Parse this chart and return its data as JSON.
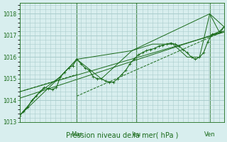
{
  "title": "",
  "xlabel": "Pression niveau de la mer( hPa )",
  "ylabel": "",
  "ylim": [
    1013,
    1018.5
  ],
  "yticks": [
    1013,
    1014,
    1015,
    1016,
    1017,
    1018
  ],
  "bg_color": "#d8eeee",
  "grid_color": "#aacccc",
  "line_color": "#1a6b1a",
  "day_labels": [
    "Mar",
    "Jeu",
    "Ven"
  ],
  "day_positions": [
    0.28,
    0.57,
    0.93
  ],
  "series": [
    {
      "x": [
        0.0,
        0.02,
        0.04,
        0.06,
        0.08,
        0.1,
        0.12,
        0.14,
        0.16,
        0.18,
        0.2,
        0.22,
        0.24,
        0.26,
        0.28,
        0.3,
        0.32,
        0.34,
        0.36,
        0.38,
        0.4,
        0.42,
        0.44,
        0.46,
        0.48,
        0.5,
        0.52,
        0.54,
        0.56,
        0.58,
        0.6,
        0.62,
        0.64,
        0.66,
        0.68,
        0.7,
        0.72,
        0.74,
        0.76,
        0.78,
        0.8,
        0.82,
        0.84,
        0.86,
        0.88,
        0.9,
        0.92,
        0.94,
        0.96,
        0.98,
        1.0
      ],
      "y": [
        1013.3,
        1013.5,
        1013.7,
        1014.0,
        1014.2,
        1014.4,
        1014.6,
        1014.55,
        1014.5,
        1014.6,
        1015.1,
        1015.3,
        1015.5,
        1015.6,
        1015.9,
        1015.7,
        1015.5,
        1015.4,
        1015.1,
        1015.0,
        1015.0,
        1014.9,
        1014.85,
        1014.85,
        1015.0,
        1015.2,
        1015.4,
        1015.7,
        1015.9,
        1016.1,
        1016.2,
        1016.3,
        1016.35,
        1016.4,
        1016.5,
        1016.55,
        1016.6,
        1016.65,
        1016.6,
        1016.5,
        1016.35,
        1016.2,
        1016.0,
        1015.9,
        1016.0,
        1016.2,
        1016.7,
        1017.05,
        1017.1,
        1017.2,
        1017.4
      ],
      "style": "solid",
      "marker": "+"
    },
    {
      "x": [
        0.0,
        0.1,
        0.2,
        0.28,
        0.4,
        0.55,
        0.65,
        0.75,
        0.82,
        0.88,
        0.93,
        0.98,
        1.0
      ],
      "y": [
        1013.3,
        1014.4,
        1015.1,
        1015.9,
        1015.0,
        1016.3,
        1016.6,
        1016.6,
        1016.0,
        1016.0,
        1018.0,
        1017.1,
        1017.4
      ],
      "style": "solid",
      "marker": null
    },
    {
      "x": [
        0.0,
        0.2,
        0.28,
        0.55,
        0.93,
        1.0
      ],
      "y": [
        1013.3,
        1015.1,
        1015.9,
        1016.3,
        1018.0,
        1017.4
      ],
      "style": "solid",
      "marker": null
    },
    {
      "x": [
        0.0,
        1.0
      ],
      "y": [
        1014.1,
        1017.2
      ],
      "style": "solid",
      "marker": null
    },
    {
      "x": [
        0.0,
        1.0
      ],
      "y": [
        1014.4,
        1017.15
      ],
      "style": "solid",
      "marker": null
    },
    {
      "x": [
        0.28,
        1.0
      ],
      "y": [
        1014.2,
        1017.2
      ],
      "style": "dashed",
      "marker": null
    },
    {
      "x": [
        0.0,
        0.28
      ],
      "y": [
        1014.4,
        1015.2
      ],
      "style": "dashed",
      "marker": null
    }
  ]
}
